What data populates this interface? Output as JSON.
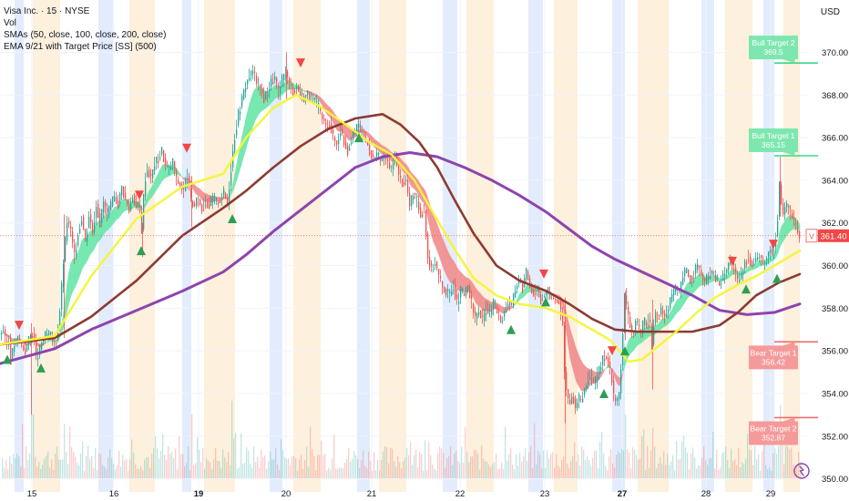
{
  "legend": {
    "symbol": "Visa Inc. · 15 · NYSE",
    "vol": "Vol",
    "smas": "SMAs (50, close, 100, close, 200, close)",
    "ema": "EMA 9/21 with Target Price [SS] (500)"
  },
  "currency": "USD",
  "colors": {
    "up": "#26a69a",
    "down": "#ef5350",
    "sma50": "#f5f53a",
    "sma100": "#8d3a34",
    "sma200": "#8e44ad",
    "bull_fill": "#66e6a8",
    "bear_fill": "#f28b8b",
    "bull_label": "#7ee7b0",
    "bear_label": "#f59a9a",
    "session_blue": "#e3ecfc",
    "session_orange": "#fdf0dc"
  },
  "chart_data": {
    "type": "candlestick",
    "y_axis": {
      "ticks": [
        350,
        352,
        354,
        356,
        358,
        360,
        362,
        364,
        366,
        368,
        370
      ],
      "ylim": [
        349.6,
        371.6
      ]
    },
    "x_axis": {
      "ticks": [
        "15",
        "16",
        "19",
        "20",
        "21",
        "22",
        "23",
        "27",
        "28",
        "29"
      ],
      "bold_ticks": [
        "19",
        "27"
      ]
    },
    "last_price": {
      "value": 361.4,
      "label": "361.40",
      "marker": "V"
    },
    "targets": [
      {
        "name": "Bull Target 2",
        "value": 369.5,
        "text": "369.5",
        "kind": "bull"
      },
      {
        "name": "Bull Target 1",
        "value": 365.15,
        "text": "365.15",
        "kind": "bull"
      },
      {
        "name": "Bear Target 1",
        "value": 356.42,
        "text": "356.42",
        "kind": "bear"
      },
      {
        "name": "Bear Target 2",
        "value": 352.87,
        "text": "352.87",
        "kind": "bear"
      }
    ],
    "price_path": [
      [
        0,
        356.8
      ],
      [
        4,
        357.0
      ],
      [
        7,
        356.2
      ],
      [
        10,
        356.5
      ],
      [
        12,
        355.6
      ],
      [
        16,
        356.3
      ],
      [
        20,
        356.6
      ],
      [
        25,
        356.2
      ],
      [
        28,
        356.0
      ],
      [
        31,
        356.4
      ],
      [
        34,
        356.7
      ],
      [
        37,
        356.9
      ],
      [
        40,
        355.6
      ],
      [
        43,
        355.9
      ],
      [
        46,
        356.4
      ],
      [
        50,
        356.7
      ],
      [
        55,
        356.8
      ],
      [
        59,
        356.3
      ],
      [
        62,
        356.5
      ],
      [
        64,
        357.0
      ],
      [
        67,
        358.4
      ],
      [
        70,
        360.2
      ],
      [
        74,
        362.1
      ],
      [
        78,
        361.6
      ],
      [
        82,
        360.4
      ],
      [
        86,
        361.5
      ],
      [
        90,
        362.3
      ],
      [
        94,
        361.1
      ],
      [
        98,
        362.4
      ],
      [
        102,
        361.6
      ],
      [
        106,
        362.9
      ],
      [
        110,
        362.0
      ],
      [
        114,
        363.0
      ],
      [
        118,
        362.4
      ],
      [
        122,
        362.8
      ],
      [
        126,
        363.2
      ],
      [
        130,
        362.9
      ],
      [
        134,
        363.7
      ],
      [
        138,
        363.1
      ],
      [
        142,
        362.6
      ],
      [
        146,
        363.3
      ],
      [
        150,
        362.7
      ],
      [
        153,
        362.9
      ],
      [
        156,
        361.7
      ],
      [
        159,
        364.0
      ],
      [
        162,
        364.5
      ],
      [
        166,
        364.1
      ],
      [
        170,
        364.8
      ],
      [
        174,
        365.0
      ],
      [
        178,
        365.4
      ],
      [
        182,
        364.7
      ],
      [
        186,
        364.5
      ],
      [
        190,
        364.9
      ],
      [
        194,
        364.0
      ],
      [
        198,
        363.8
      ],
      [
        202,
        363.5
      ],
      [
        206,
        364.2
      ],
      [
        210,
        363.0
      ],
      [
        214,
        362.8
      ],
      [
        218,
        363.1
      ],
      [
        222,
        362.6
      ],
      [
        226,
        363.0
      ],
      [
        230,
        362.8
      ],
      [
        234,
        363.2
      ],
      [
        238,
        363.0
      ],
      [
        242,
        363.1
      ],
      [
        246,
        363.4
      ],
      [
        250,
        362.9
      ],
      [
        254,
        364.6
      ],
      [
        258,
        366.1
      ],
      [
        262,
        367.1
      ],
      [
        266,
        367.8
      ],
      [
        270,
        368.5
      ],
      [
        274,
        368.9
      ],
      [
        278,
        369.1
      ],
      [
        282,
        368.7
      ],
      [
        286,
        368.3
      ],
      [
        290,
        367.8
      ],
      [
        294,
        368.2
      ],
      [
        298,
        368.6
      ],
      [
        302,
        368.8
      ],
      [
        306,
        368.1
      ],
      [
        310,
        368.7
      ],
      [
        314,
        369.1
      ],
      [
        318,
        368.5
      ],
      [
        322,
        368.2
      ],
      [
        326,
        368.4
      ],
      [
        330,
        368.0
      ],
      [
        334,
        367.9
      ],
      [
        338,
        368.1
      ],
      [
        342,
        367.8
      ],
      [
        346,
        367.7
      ],
      [
        350,
        367.4
      ],
      [
        354,
        366.9
      ],
      [
        358,
        366.5
      ],
      [
        362,
        366.7
      ],
      [
        366,
        366.0
      ],
      [
        370,
        365.7
      ],
      [
        374,
        366.4
      ],
      [
        378,
        365.8
      ],
      [
        382,
        365.4
      ],
      [
        386,
        366.0
      ],
      [
        390,
        366.3
      ],
      [
        394,
        366.6
      ],
      [
        398,
        366.2
      ],
      [
        402,
        365.9
      ],
      [
        406,
        365.4
      ],
      [
        410,
        365.0
      ],
      [
        414,
        365.2
      ],
      [
        418,
        364.9
      ],
      [
        422,
        365.1
      ],
      [
        426,
        364.8
      ],
      [
        430,
        364.5
      ],
      [
        434,
        365.1
      ],
      [
        438,
        364.2
      ],
      [
        442,
        363.9
      ],
      [
        446,
        364.0
      ],
      [
        450,
        362.8
      ],
      [
        454,
        363.4
      ],
      [
        458,
        363.0
      ],
      [
        462,
        362.4
      ],
      [
        466,
        362.6
      ],
      [
        470,
        360.4
      ],
      [
        474,
        359.8
      ],
      [
        478,
        360.2
      ],
      [
        482,
        359.5
      ],
      [
        486,
        359.0
      ],
      [
        490,
        358.8
      ],
      [
        494,
        358.6
      ],
      [
        498,
        359.1
      ],
      [
        502,
        358.2
      ],
      [
        506,
        358.8
      ],
      [
        510,
        358.6
      ],
      [
        514,
        359.0
      ],
      [
        518,
        358.2
      ],
      [
        522,
        357.5
      ],
      [
        526,
        357.9
      ],
      [
        530,
        357.4
      ],
      [
        534,
        358.0
      ],
      [
        538,
        357.7
      ],
      [
        542,
        358.3
      ],
      [
        546,
        357.9
      ],
      [
        550,
        357.4
      ],
      [
        554,
        357.8
      ],
      [
        558,
        358.3
      ],
      [
        562,
        358.1
      ],
      [
        566,
        358.9
      ],
      [
        570,
        359.4
      ],
      [
        574,
        359.0
      ],
      [
        578,
        359.7
      ],
      [
        582,
        359.1
      ],
      [
        586,
        358.7
      ],
      [
        590,
        358.9
      ],
      [
        594,
        358.4
      ],
      [
        598,
        358.6
      ],
      [
        602,
        358.8
      ],
      [
        606,
        358.5
      ],
      [
        610,
        358.4
      ],
      [
        614,
        358.3
      ],
      [
        618,
        357.2
      ],
      [
        620,
        355.0
      ],
      [
        623,
        353.8
      ],
      [
        626,
        353.5
      ],
      [
        629,
        354.0
      ],
      [
        632,
        353.3
      ],
      [
        635,
        353.8
      ],
      [
        638,
        353.6
      ],
      [
        641,
        354.1
      ],
      [
        644,
        354.4
      ],
      [
        647,
        354.9
      ],
      [
        650,
        354.7
      ],
      [
        653,
        354.4
      ],
      [
        656,
        354.9
      ],
      [
        659,
        355.2
      ],
      [
        662,
        355.6
      ],
      [
        665,
        355.8
      ],
      [
        668,
        355.5
      ],
      [
        671,
        355.0
      ],
      [
        674,
        353.8
      ],
      [
        677,
        353.6
      ],
      [
        680,
        354.0
      ],
      [
        683,
        356.0
      ],
      [
        686,
        358.6
      ],
      [
        689,
        357.8
      ],
      [
        692,
        357.2
      ],
      [
        695,
        356.7
      ],
      [
        698,
        357.4
      ],
      [
        701,
        357.1
      ],
      [
        704,
        356.8
      ],
      [
        707,
        357.4
      ],
      [
        710,
        357.2
      ],
      [
        713,
        357.6
      ],
      [
        716,
        356.3
      ],
      [
        719,
        357.8
      ],
      [
        722,
        357.5
      ],
      [
        726,
        357.9
      ],
      [
        730,
        357.6
      ],
      [
        734,
        358.0
      ],
      [
        738,
        358.6
      ],
      [
        742,
        359.0
      ],
      [
        746,
        358.7
      ],
      [
        750,
        359.5
      ],
      [
        754,
        359.8
      ],
      [
        758,
        359.3
      ],
      [
        762,
        359.6
      ],
      [
        766,
        360.0
      ],
      [
        770,
        359.6
      ],
      [
        774,
        359.2
      ],
      [
        778,
        359.5
      ],
      [
        782,
        359.7
      ],
      [
        786,
        359.4
      ],
      [
        790,
        359.1
      ],
      [
        794,
        359.5
      ],
      [
        798,
        359.8
      ],
      [
        802,
        360.3
      ],
      [
        806,
        359.9
      ],
      [
        810,
        359.2
      ],
      [
        814,
        359.6
      ],
      [
        818,
        360.1
      ],
      [
        822,
        360.4
      ],
      [
        826,
        360.0
      ],
      [
        830,
        360.3
      ],
      [
        834,
        360.5
      ],
      [
        838,
        360.1
      ],
      [
        842,
        360.4
      ],
      [
        846,
        360.8
      ],
      [
        849,
        360.6
      ],
      [
        852,
        361.4
      ],
      [
        854,
        362.3
      ],
      [
        856,
        363.8
      ],
      [
        858,
        362.9
      ],
      [
        860,
        362.4
      ],
      [
        863,
        362.9
      ],
      [
        866,
        362.6
      ],
      [
        869,
        362.4
      ],
      [
        872,
        362.0
      ],
      [
        875,
        361.7
      ],
      [
        878,
        361.4
      ]
    ],
    "sma50": [
      [
        0,
        356.3
      ],
      [
        60,
        356.7
      ],
      [
        100,
        359.5
      ],
      [
        150,
        362.2
      ],
      [
        200,
        363.7
      ],
      [
        245,
        364.3
      ],
      [
        270,
        366.0
      ],
      [
        300,
        367.4
      ],
      [
        325,
        368.0
      ],
      [
        350,
        367.5
      ],
      [
        380,
        366.6
      ],
      [
        405,
        365.8
      ],
      [
        430,
        365.2
      ],
      [
        455,
        364.0
      ],
      [
        475,
        362.5
      ],
      [
        500,
        360.7
      ],
      [
        520,
        359.4
      ],
      [
        545,
        358.6
      ],
      [
        570,
        358.2
      ],
      [
        600,
        358.0
      ],
      [
        625,
        357.6
      ],
      [
        650,
        357.0
      ],
      [
        670,
        356.5
      ],
      [
        690,
        355.5
      ],
      [
        705,
        355.6
      ],
      [
        725,
        356.3
      ],
      [
        745,
        357.0
      ],
      [
        765,
        357.8
      ],
      [
        785,
        358.5
      ],
      [
        810,
        359.1
      ],
      [
        830,
        359.5
      ],
      [
        850,
        360.0
      ],
      [
        878,
        360.7
      ]
    ],
    "sma100": [
      [
        0,
        356.3
      ],
      [
        60,
        356.6
      ],
      [
        100,
        357.6
      ],
      [
        150,
        359.3
      ],
      [
        200,
        361.4
      ],
      [
        245,
        362.7
      ],
      [
        270,
        363.5
      ],
      [
        300,
        364.6
      ],
      [
        330,
        365.6
      ],
      [
        360,
        366.4
      ],
      [
        390,
        366.9
      ],
      [
        420,
        367.1
      ],
      [
        440,
        366.6
      ],
      [
        460,
        365.8
      ],
      [
        480,
        364.6
      ],
      [
        500,
        363.0
      ],
      [
        520,
        361.5
      ],
      [
        545,
        360.0
      ],
      [
        570,
        359.3
      ],
      [
        600,
        358.8
      ],
      [
        625,
        358.2
      ],
      [
        650,
        357.5
      ],
      [
        675,
        357.0
      ],
      [
        700,
        356.9
      ],
      [
        730,
        356.9
      ],
      [
        760,
        356.9
      ],
      [
        790,
        357.2
      ],
      [
        810,
        357.8
      ],
      [
        830,
        358.6
      ],
      [
        855,
        359.2
      ],
      [
        878,
        359.6
      ]
    ],
    "sma200": [
      [
        0,
        355.4
      ],
      [
        60,
        356.1
      ],
      [
        100,
        357.0
      ],
      [
        150,
        357.9
      ],
      [
        200,
        358.8
      ],
      [
        245,
        359.7
      ],
      [
        270,
        360.5
      ],
      [
        300,
        361.6
      ],
      [
        330,
        362.6
      ],
      [
        360,
        363.6
      ],
      [
        390,
        364.6
      ],
      [
        420,
        365.1
      ],
      [
        450,
        365.3
      ],
      [
        480,
        365.1
      ],
      [
        510,
        364.6
      ],
      [
        540,
        364.0
      ],
      [
        570,
        363.3
      ],
      [
        600,
        362.5
      ],
      [
        625,
        361.7
      ],
      [
        650,
        360.9
      ],
      [
        675,
        360.3
      ],
      [
        700,
        359.8
      ],
      [
        730,
        359.2
      ],
      [
        760,
        358.6
      ],
      [
        790,
        357.9
      ],
      [
        820,
        357.7
      ],
      [
        850,
        357.8
      ],
      [
        878,
        358.2
      ]
    ],
    "signals": [
      {
        "x": 8,
        "y": 355.6,
        "dir": "up"
      },
      {
        "x": 21,
        "y": 357.2,
        "dir": "down"
      },
      {
        "x": 45,
        "y": 355.2,
        "dir": "up"
      },
      {
        "x": 155,
        "y": 360.7,
        "dir": "up"
      },
      {
        "x": 153,
        "y": 363.3,
        "dir": "down"
      },
      {
        "x": 205,
        "y": 365.5,
        "dir": "down"
      },
      {
        "x": 255,
        "y": 362.2,
        "dir": "up"
      },
      {
        "x": 330,
        "y": 369.5,
        "dir": "down"
      },
      {
        "x": 394,
        "y": 366.0,
        "dir": "up"
      },
      {
        "x": 561,
        "y": 357.0,
        "dir": "up"
      },
      {
        "x": 597,
        "y": 359.6,
        "dir": "down"
      },
      {
        "x": 599,
        "y": 358.3,
        "dir": "up"
      },
      {
        "x": 663,
        "y": 354.0,
        "dir": "up"
      },
      {
        "x": 672,
        "y": 356.0,
        "dir": "down"
      },
      {
        "x": 686,
        "y": 356.0,
        "dir": "up"
      },
      {
        "x": 804,
        "y": 360.2,
        "dir": "down"
      },
      {
        "x": 819,
        "y": 358.9,
        "dir": "up"
      },
      {
        "x": 853,
        "y": 359.4,
        "dir": "up"
      },
      {
        "x": 849,
        "y": 361.0,
        "dir": "down"
      }
    ]
  }
}
